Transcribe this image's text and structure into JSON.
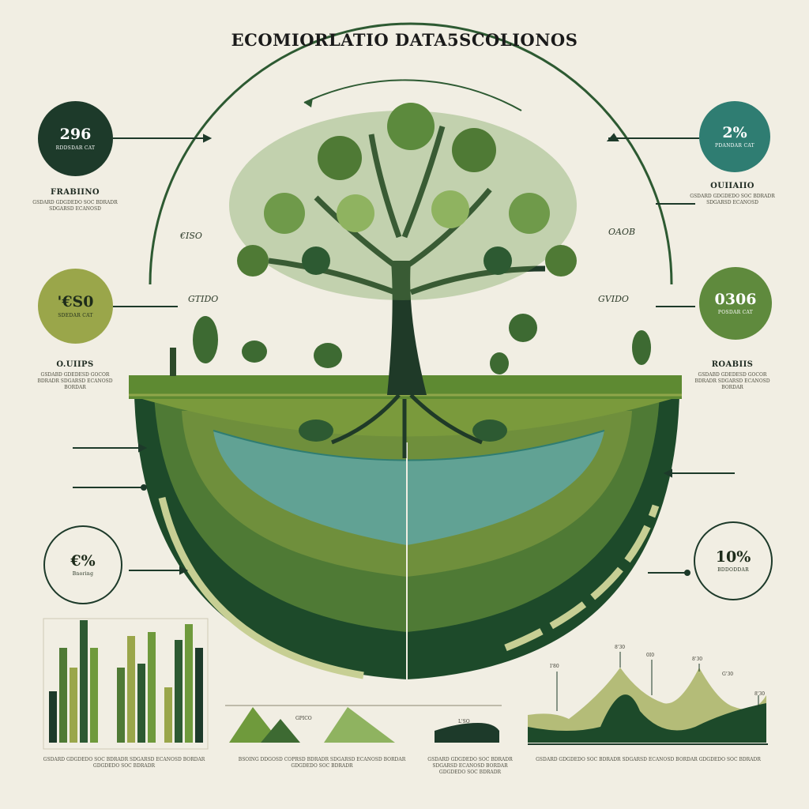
{
  "title": "ECOMIORLATIO DATA5SCOLIONOS",
  "stats_left": [
    {
      "value": "296",
      "caption": "RDDSDAR CAT",
      "color": "#1d3a2a",
      "text_color": "#ffffff"
    },
    {
      "value": "'€S0",
      "caption": "SDEDAR CAT",
      "color": "#9aa64a",
      "text_color": "#1d2b1a"
    },
    {
      "value": "€%",
      "caption": "Bnoring",
      "color": "#f1eee3",
      "text_color": "#1d2b1a"
    }
  ],
  "stats_right": [
    {
      "value": "2%",
      "caption": "PDANDAR CAT",
      "color": "#2f7d72",
      "text_color": "#ffffff"
    },
    {
      "value": "0306",
      "caption": "POSDAR CAT",
      "color": "#5f8a3d",
      "text_color": "#ffffff"
    },
    {
      "value": "10%",
      "caption": "BDDODDAR",
      "color": "#f1eee3",
      "text_color": "#1d2b1a"
    }
  ],
  "labels_left": [
    {
      "label": "FRABIINO",
      "desc": "GSDARD GDGDEDO SOC BDRADR SDGARSD ECANOSD"
    },
    {
      "label": "O.UIIPS",
      "desc": "GSDABD GDEDESD GOCOR BDRADR SDGARSD ECANOSD BORDAR"
    }
  ],
  "labels_right": [
    {
      "label": "OUIIAIIO",
      "desc": "GSDARD GDGDEDO SOC BDRADR SDGARSD ECANOSD"
    },
    {
      "label": "ROABIIS",
      "desc": "GSDABD GDEDESD GOCOR BDRADR SDGARSD ECANOSD BORDAR"
    }
  ],
  "float_labels": {
    "left_top": "€ISO",
    "right_top": "OAOB",
    "left_mid": "GTIDO",
    "right_mid": "GVIDO"
  },
  "chart_labels": {
    "a": "GPICO",
    "b": "L'SO",
    "c": "8'30",
    "d": "I'80",
    "e": "0I0",
    "f": "8'30",
    "g": "G'30",
    "h": "8'30"
  },
  "footnotes": [
    "GSDARD GDGDEDO SOC BDRADR SDGARSD ECANOSD BORDAR GDGDEDO SOC BDRADR",
    "BSOING DDGOSD COPRSD BDRADR SDGARSD ECANOSD BORDAR GDGDEDO SOC BDRADR",
    "GSDARD GDGDEDO SOC BDRADR SDGARSD ECANOSD BORDAR GDGDEDO SOC BDRADR",
    "GSDARD GDGDEDO SOC BDRADR SDGARSD ECANOSD BORDAR GDGDEDO SOC BDRADR"
  ],
  "palette": {
    "dark": "#1d3a2a",
    "green": "#4f7a35",
    "olive": "#9aa64a",
    "teal": "#2f7d72",
    "bg": "#f1eee3"
  }
}
